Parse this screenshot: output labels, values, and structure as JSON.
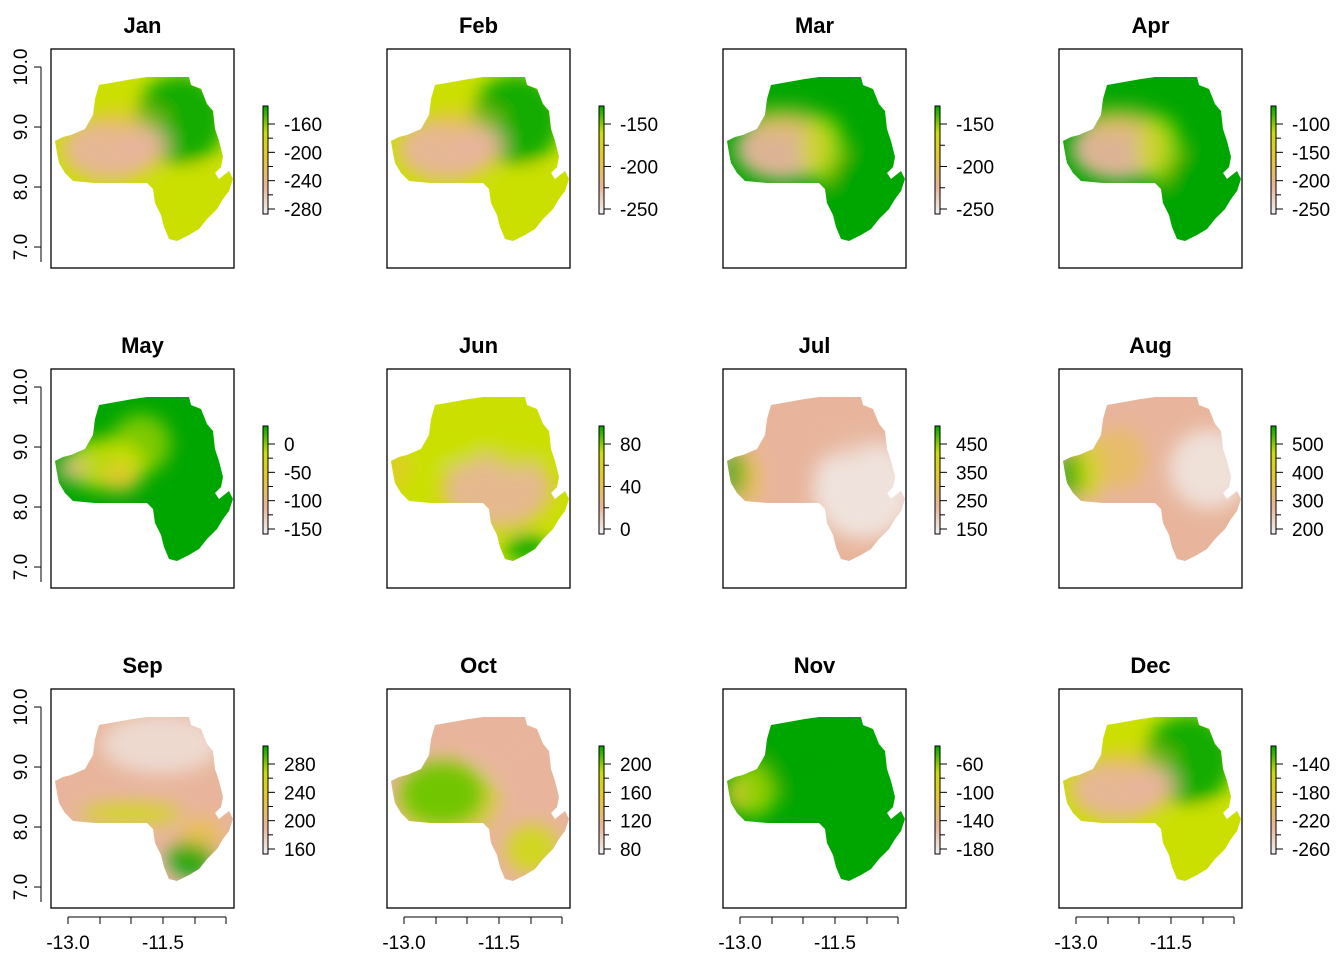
{
  "figure": {
    "panels": [
      {
        "title": "Jan",
        "legend": {
          "ticks": [
            "-160",
            "-200",
            "-240",
            "-280"
          ]
        },
        "pattern": "jan"
      },
      {
        "title": "Feb",
        "legend": {
          "ticks": [
            "-150",
            "-200",
            "-250"
          ]
        },
        "pattern": "jan"
      },
      {
        "title": "Mar",
        "legend": {
          "ticks": [
            "-150",
            "-200",
            "-250"
          ]
        },
        "pattern": "mar"
      },
      {
        "title": "Apr",
        "legend": {
          "ticks": [
            "-100",
            "-150",
            "-200",
            "-250"
          ]
        },
        "pattern": "mar"
      },
      {
        "title": "May",
        "legend": {
          "ticks": [
            "0",
            "-50",
            "-100",
            "-150"
          ]
        },
        "pattern": "may"
      },
      {
        "title": "Jun",
        "legend": {
          "ticks": [
            "80",
            "40",
            "0"
          ]
        },
        "pattern": "jun"
      },
      {
        "title": "Jul",
        "legend": {
          "ticks": [
            "450",
            "350",
            "250",
            "150"
          ]
        },
        "pattern": "jul"
      },
      {
        "title": "Aug",
        "legend": {
          "ticks": [
            "500",
            "400",
            "300",
            "200"
          ]
        },
        "pattern": "aug"
      },
      {
        "title": "Sep",
        "legend": {
          "ticks": [
            "280",
            "240",
            "200",
            "160"
          ]
        },
        "pattern": "sep"
      },
      {
        "title": "Oct",
        "legend": {
          "ticks": [
            "200",
            "160",
            "120",
            "80"
          ]
        },
        "pattern": "oct"
      },
      {
        "title": "Nov",
        "legend": {
          "ticks": [
            "-60",
            "-100",
            "-140",
            "-180"
          ]
        },
        "pattern": "nov"
      },
      {
        "title": "Dec",
        "legend": {
          "ticks": [
            "-140",
            "-180",
            "-220",
            "-260"
          ]
        },
        "pattern": "jan"
      }
    ],
    "y_axis_ticks": [
      "10.0",
      "9.0",
      "8.0",
      "7.0"
    ],
    "x_axis_ticks": [
      "-13.0",
      "-11.5"
    ],
    "palette": {
      "low": "#f2f2f2",
      "mid_low": "#e8b59c",
      "mid": "#e8c33a",
      "mid_high": "#cbe000",
      "high": "#00a600"
    }
  }
}
